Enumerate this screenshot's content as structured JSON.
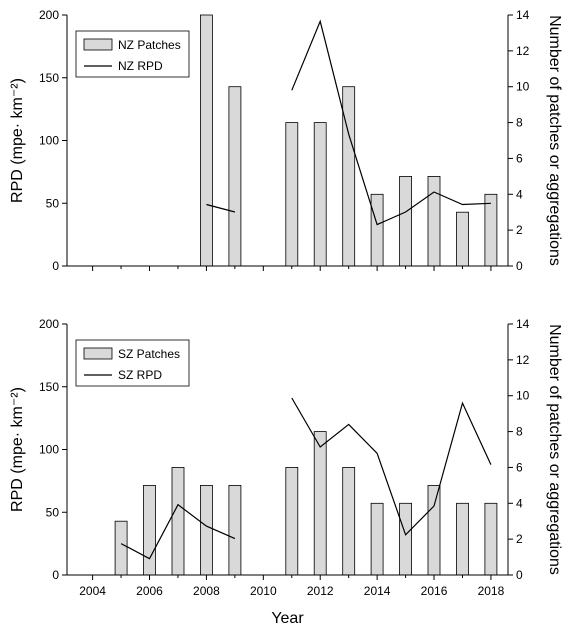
{
  "chart_data": [
    {
      "type": "bar",
      "panel": "NZ",
      "x_ticks": [
        2004,
        2006,
        2008,
        2010,
        2012,
        2014,
        2016,
        2018
      ],
      "x_range": [
        2003.1,
        2018.6
      ],
      "ylim": [
        0,
        200
      ],
      "y_ticks": [
        0,
        50,
        100,
        150,
        200
      ],
      "ylabel": "RPD (mpe· km⁻²)",
      "y2lim": [
        0,
        14
      ],
      "y2_ticks": [
        0,
        2,
        4,
        6,
        8,
        10,
        12,
        14
      ],
      "y2label": "Number of patches or aggregations",
      "legend_position": "top-left",
      "bars": {
        "name": "NZ Patches",
        "axis": "right",
        "points": [
          {
            "x": 2008,
            "y": 14
          },
          {
            "x": 2009,
            "y": 10
          },
          {
            "x": 2011,
            "y": 8
          },
          {
            "x": 2012,
            "y": 8
          },
          {
            "x": 2013,
            "y": 10
          },
          {
            "x": 2014,
            "y": 4
          },
          {
            "x": 2015,
            "y": 5
          },
          {
            "x": 2016,
            "y": 5
          },
          {
            "x": 2017,
            "y": 3
          },
          {
            "x": 2018,
            "y": 4
          }
        ]
      },
      "line": {
        "name": "NZ RPD",
        "axis": "left",
        "segments": [
          [
            {
              "x": 2008,
              "y": 49
            },
            {
              "x": 2009,
              "y": 43
            }
          ],
          [
            {
              "x": 2011,
              "y": 140
            },
            {
              "x": 2012,
              "y": 195
            },
            {
              "x": 2013,
              "y": 105
            },
            {
              "x": 2014,
              "y": 33
            },
            {
              "x": 2015,
              "y": 43
            },
            {
              "x": 2016,
              "y": 59
            },
            {
              "x": 2017,
              "y": 49
            },
            {
              "x": 2018,
              "y": 50
            }
          ]
        ]
      }
    },
    {
      "type": "bar",
      "panel": "SZ",
      "x_ticks": [
        2004,
        2006,
        2008,
        2010,
        2012,
        2014,
        2016,
        2018
      ],
      "x_tick_labels": [
        "2004",
        "2006",
        "2008",
        "2010",
        "2012",
        "2014",
        "2016",
        "2018"
      ],
      "x_range": [
        2003.1,
        2018.6
      ],
      "xlabel": "Year",
      "ylim": [
        0,
        200
      ],
      "y_ticks": [
        0,
        50,
        100,
        150,
        200
      ],
      "ylabel": "RPD (mpe· km⁻²)",
      "y2lim": [
        0,
        14
      ],
      "y2_ticks": [
        0,
        2,
        4,
        6,
        8,
        10,
        12,
        14
      ],
      "y2label": "Number of patches or aggregations",
      "legend_position": "top-left",
      "bars": {
        "name": "SZ Patches",
        "axis": "right",
        "points": [
          {
            "x": 2005,
            "y": 3
          },
          {
            "x": 2006,
            "y": 5
          },
          {
            "x": 2007,
            "y": 6
          },
          {
            "x": 2008,
            "y": 5
          },
          {
            "x": 2009,
            "y": 5
          },
          {
            "x": 2011,
            "y": 6
          },
          {
            "x": 2012,
            "y": 8
          },
          {
            "x": 2013,
            "y": 6
          },
          {
            "x": 2014,
            "y": 4
          },
          {
            "x": 2015,
            "y": 4
          },
          {
            "x": 2016,
            "y": 5
          },
          {
            "x": 2017,
            "y": 4
          },
          {
            "x": 2018,
            "y": 4
          }
        ]
      },
      "line": {
        "name": "SZ RPD",
        "axis": "left",
        "segments": [
          [
            {
              "x": 2005,
              "y": 25
            },
            {
              "x": 2006,
              "y": 13
            },
            {
              "x": 2007,
              "y": 56
            },
            {
              "x": 2008,
              "y": 39
            },
            {
              "x": 2009,
              "y": 29
            }
          ],
          [
            {
              "x": 2011,
              "y": 141
            },
            {
              "x": 2012,
              "y": 102
            },
            {
              "x": 2013,
              "y": 120
            },
            {
              "x": 2014,
              "y": 97
            },
            {
              "x": 2015,
              "y": 32
            },
            {
              "x": 2016,
              "y": 55
            },
            {
              "x": 2017,
              "y": 137
            },
            {
              "x": 2018,
              "y": 88
            }
          ]
        ]
      }
    }
  ]
}
